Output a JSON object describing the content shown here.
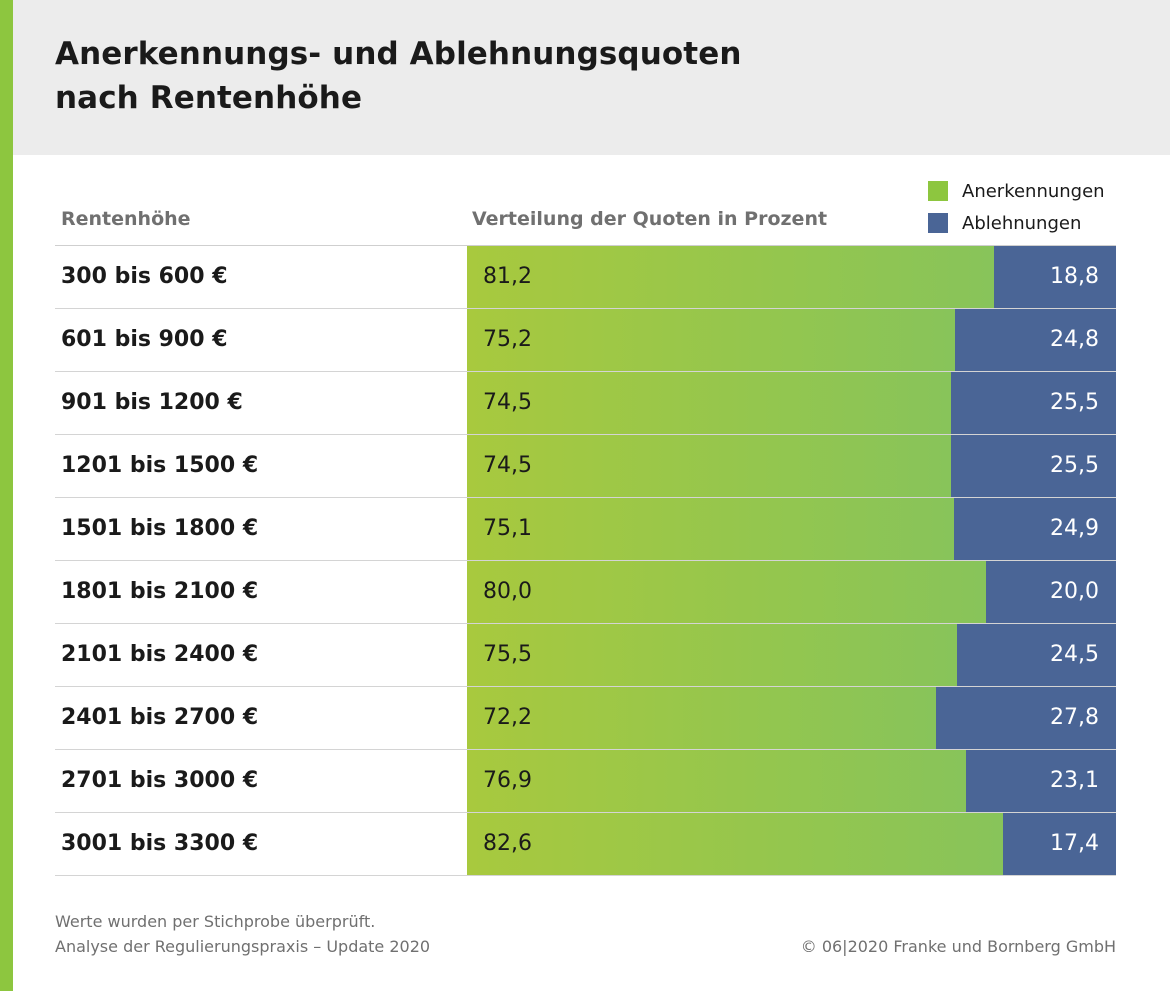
{
  "title": {
    "line1": "Anerkennungs- und Ablehnungsquoten",
    "line2": "nach Rentenhöhe"
  },
  "legend": [
    {
      "label": "Anerkennungen",
      "color": "#8dc63f"
    },
    {
      "label": "Ablehnungen",
      "color": "#4a6596"
    }
  ],
  "columns": {
    "left": "Rentenhöhe",
    "right": "Verteilung der Quoten in Prozent"
  },
  "chart_data": {
    "type": "bar",
    "stacked": true,
    "orientation": "horizontal",
    "categories": [
      "300 bis 600 €",
      "601 bis 900 €",
      "901 bis 1200 €",
      "1201 bis 1500 €",
      "1501 bis 1800 €",
      "1801 bis 2100 €",
      "2101 bis 2400 €",
      "2401 bis 2700 €",
      "2701 bis 3000 €",
      "3001 bis 3300 €"
    ],
    "series": [
      {
        "name": "Anerkennungen",
        "color": "#8dc63f",
        "values": [
          81.2,
          75.2,
          74.5,
          74.5,
          75.1,
          80.0,
          75.5,
          72.2,
          76.9,
          82.6
        ],
        "labels": [
          "81,2",
          "75,2",
          "74,5",
          "74,5",
          "75,1",
          "80,0",
          "75,5",
          "72,2",
          "76,9",
          "82,6"
        ]
      },
      {
        "name": "Ablehnungen",
        "color": "#4a6596",
        "values": [
          18.8,
          24.8,
          25.5,
          25.5,
          24.9,
          20.0,
          24.5,
          27.8,
          23.1,
          17.4
        ],
        "labels": [
          "18,8",
          "24,8",
          "25,5",
          "25,5",
          "24,9",
          "20,0",
          "24,5",
          "27,8",
          "23,1",
          "17,4"
        ]
      }
    ],
    "xlim": [
      0,
      100
    ]
  },
  "footnote": {
    "line1": "Werte wurden per Stichprobe überprüft.",
    "line2": "Analyse der Regulierungspraxis – Update 2020"
  },
  "copyright": "© 06|2020 Franke und Bornberg GmbH"
}
